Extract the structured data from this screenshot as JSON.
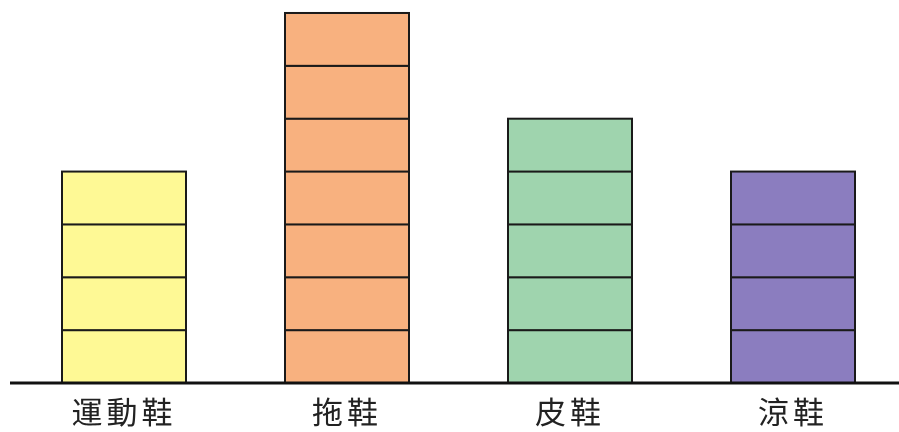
{
  "chart_data": {
    "type": "bar",
    "style": "stacked-unit-blocks",
    "categories": [
      "運動鞋",
      "拖鞋",
      "皮鞋",
      "涼鞋"
    ],
    "values": [
      4,
      7,
      5,
      4
    ],
    "colors": [
      "#fef995",
      "#f8b17f",
      "#9fd4ae",
      "#8b7dbf"
    ],
    "title": "",
    "xlabel": "",
    "ylabel": "",
    "ylim": [
      0,
      7
    ],
    "grid": false,
    "legend": "none"
  }
}
